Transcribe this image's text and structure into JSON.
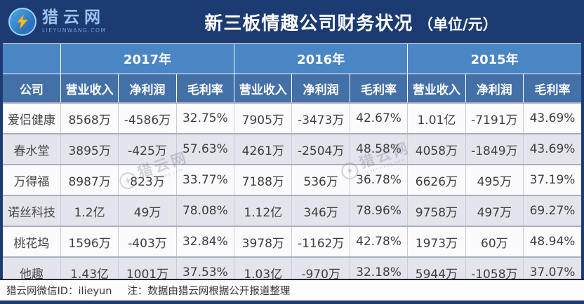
{
  "banner": {
    "logo": {
      "name": "猎云网",
      "domain": "LIEYUNWANG.COM"
    },
    "title": {
      "main": "新三板情趣公司财务状况",
      "unit": "（单位/元）"
    }
  },
  "table": {
    "company_header": "公司",
    "year_groups": [
      "2017年",
      "2016年",
      "2015年"
    ],
    "metric_headers": [
      "营业收入",
      "净利润",
      "毛利率"
    ],
    "rows": [
      {
        "company": "爱侣健康",
        "values": [
          "8568万",
          "-4586万",
          "32.75%",
          "7905万",
          "-3473万",
          "42.67%",
          "1.01亿",
          "-7191万",
          "43.69%"
        ]
      },
      {
        "company": "春水堂",
        "values": [
          "3895万",
          "-425万",
          "57.63%",
          "4261万",
          "-2504万",
          "48.58%",
          "4058万",
          "-1849万",
          "43.69%"
        ]
      },
      {
        "company": "万得福",
        "values": [
          "8987万",
          "823万",
          "33.77%",
          "7188万",
          "536万",
          "36.78%",
          "6626万",
          "495万",
          "37.19%"
        ]
      },
      {
        "company": "诺丝科技",
        "values": [
          "1.2亿",
          "49万",
          "78.08%",
          "1.12亿",
          "346万",
          "78.96%",
          "9758万",
          "497万",
          "69.27%"
        ]
      },
      {
        "company": "桃花坞",
        "values": [
          "1596万",
          "-403万",
          "32.84%",
          "3978万",
          "-1162万",
          "42.78%",
          "1973万",
          "60万",
          "48.94%"
        ]
      },
      {
        "company": "他趣",
        "values": [
          "1.43亿",
          "1001万",
          "37.53%",
          "1.03亿",
          "-970万",
          "32.18%",
          "5944万",
          "-1058万",
          "37.07%"
        ]
      }
    ]
  },
  "footer": {
    "wechat": "猎云网微信ID：ilieyun",
    "note": "注：数据由猎云网根据公开报道整理"
  },
  "watermark": {
    "text": "猎云网",
    "sub": "lieyunwang.com"
  },
  "colors": {
    "banner_navy": "#1c3b72",
    "year_row_blue": "#4a85c4",
    "metric_row_blue": "#4470a8",
    "row_stripe_gray": "#e4e4ec",
    "row_white": "#fbfbfd",
    "logo_bolt_yellow": "#f6c026",
    "text_dark": "#3f3f3f"
  },
  "chart_data": {
    "type": "table",
    "title": "新三板情趣公司财务状况（单位/元）",
    "column_groups": [
      "2017年",
      "2016年",
      "2015年"
    ],
    "columns": [
      "公司",
      "2017年 营业收入",
      "2017年 净利润",
      "2017年 毛利率",
      "2016年 营业收入",
      "2016年 净利润",
      "2016年 毛利率",
      "2015年 营业收入",
      "2015年 净利润",
      "2015年 毛利率"
    ],
    "rows": [
      [
        "爱侣健康",
        "8568万",
        "-4586万",
        "32.75%",
        "7905万",
        "-3473万",
        "42.67%",
        "1.01亿",
        "-7191万",
        "43.69%"
      ],
      [
        "春水堂",
        "3895万",
        "-425万",
        "57.63%",
        "4261万",
        "-2504万",
        "48.58%",
        "4058万",
        "-1849万",
        "43.69%"
      ],
      [
        "万得福",
        "8987万",
        "823万",
        "33.77%",
        "7188万",
        "536万",
        "36.78%",
        "6626万",
        "495万",
        "37.19%"
      ],
      [
        "诺丝科技",
        "1.2亿",
        "49万",
        "78.08%",
        "1.12亿",
        "346万",
        "78.96%",
        "9758万",
        "497万",
        "69.27%"
      ],
      [
        "桃花坞",
        "1596万",
        "-403万",
        "32.84%",
        "3978万",
        "-1162万",
        "42.78%",
        "1973万",
        "60万",
        "48.94%"
      ],
      [
        "他趣",
        "1.43亿",
        "1001万",
        "37.53%",
        "1.03亿",
        "-970万",
        "32.18%",
        "5944万",
        "-1058万",
        "37.07%"
      ]
    ],
    "source_note": "注：数据由猎云网根据公开报道整理"
  }
}
